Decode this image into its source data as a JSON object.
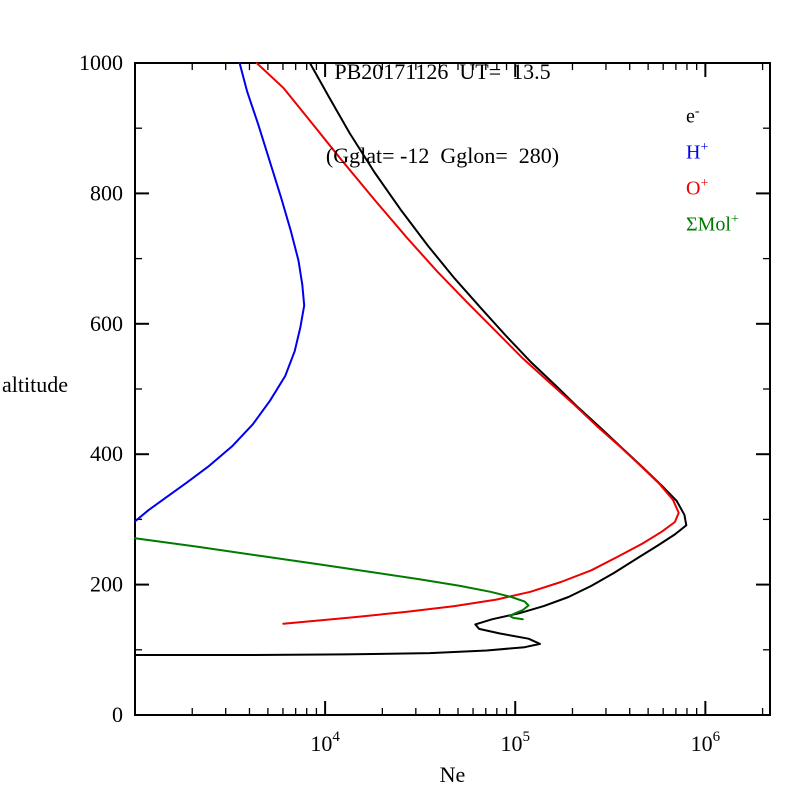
{
  "figure": {
    "title_line1": "PB20171126  UT=  13.5",
    "title_line2": "(Gglat= -12  Gglon=  280)",
    "xlabel": "Ne",
    "ylabel": "altitude"
  },
  "legend": {
    "items": [
      {
        "base": "e",
        "sup": "-",
        "color": "#000000"
      },
      {
        "base": "H",
        "sup": "+",
        "color": "#0000ee"
      },
      {
        "base": "O",
        "sup": "+",
        "color": "#ee0000"
      },
      {
        "base": "ΣMol",
        "sup": "+",
        "color": "#007a00"
      }
    ]
  },
  "chart_data": {
    "type": "line",
    "title": "PB20171126  UT=  13.5  (Gglat= -12  Gglon= 280)",
    "xlabel": "Ne",
    "ylabel": "altitude",
    "x_scale": "log10",
    "xlim_log10": [
      3.0,
      6.34
    ],
    "ylim": [
      0,
      1000
    ],
    "grid": false,
    "legend_position": "top-right-inside",
    "x_ticks": [
      {
        "log10": 4,
        "base": "10",
        "exp": "4"
      },
      {
        "log10": 5,
        "base": "10",
        "exp": "5"
      },
      {
        "log10": 6,
        "base": "10",
        "exp": "6"
      }
    ],
    "y_ticks": [
      {
        "value": 0,
        "label": "0"
      },
      {
        "value": 200,
        "label": "200"
      },
      {
        "value": 400,
        "label": "400"
      },
      {
        "value": 600,
        "label": "600"
      },
      {
        "value": 800,
        "label": "800"
      },
      {
        "value": 1000,
        "label": "1000"
      }
    ],
    "y_minor_step": 100,
    "series": [
      {
        "name": "e-",
        "color": "#000000",
        "points_log10Ne_alt": [
          [
            3.0,
            92
          ],
          [
            3.6,
            92
          ],
          [
            4.1,
            93
          ],
          [
            4.55,
            95
          ],
          [
            4.85,
            99
          ],
          [
            5.05,
            104
          ],
          [
            5.13,
            109
          ],
          [
            5.07,
            117
          ],
          [
            4.92,
            125
          ],
          [
            4.81,
            132
          ],
          [
            4.79,
            139
          ],
          [
            4.88,
            147
          ],
          [
            5.02,
            156
          ],
          [
            5.15,
            167
          ],
          [
            5.28,
            181
          ],
          [
            5.4,
            198
          ],
          [
            5.52,
            218
          ],
          [
            5.64,
            240
          ],
          [
            5.75,
            260
          ],
          [
            5.84,
            277
          ],
          [
            5.9,
            291
          ],
          [
            5.89,
            307
          ],
          [
            5.85,
            328
          ],
          [
            5.77,
            352
          ],
          [
            5.67,
            380
          ],
          [
            5.56,
            410
          ],
          [
            5.45,
            440
          ],
          [
            5.33,
            472
          ],
          [
            5.21,
            506
          ],
          [
            5.08,
            542
          ],
          [
            4.95,
            582
          ],
          [
            4.82,
            624
          ],
          [
            4.68,
            670
          ],
          [
            4.54,
            720
          ],
          [
            4.4,
            774
          ],
          [
            4.26,
            832
          ],
          [
            4.13,
            892
          ],
          [
            4.02,
            948
          ],
          [
            3.92,
            1000
          ]
        ]
      },
      {
        "name": "H+",
        "color": "#0000ee",
        "points_log10Ne_alt": [
          [
            3.0,
            297
          ],
          [
            3.07,
            314
          ],
          [
            3.16,
            333
          ],
          [
            3.27,
            356
          ],
          [
            3.39,
            382
          ],
          [
            3.51,
            412
          ],
          [
            3.62,
            446
          ],
          [
            3.71,
            482
          ],
          [
            3.79,
            520
          ],
          [
            3.84,
            558
          ],
          [
            3.87,
            595
          ],
          [
            3.89,
            628
          ],
          [
            3.88,
            660
          ],
          [
            3.86,
            697
          ],
          [
            3.82,
            742
          ],
          [
            3.77,
            792
          ],
          [
            3.71,
            848
          ],
          [
            3.65,
            904
          ],
          [
            3.59,
            956
          ],
          [
            3.55,
            1000
          ]
        ]
      },
      {
        "name": "O+",
        "color": "#ee0000",
        "points_log10Ne_alt": [
          [
            3.78,
            140
          ],
          [
            3.93,
            144
          ],
          [
            4.15,
            150
          ],
          [
            4.42,
            158
          ],
          [
            4.68,
            167
          ],
          [
            4.9,
            177
          ],
          [
            5.08,
            189
          ],
          [
            5.24,
            204
          ],
          [
            5.4,
            222
          ],
          [
            5.54,
            243
          ],
          [
            5.67,
            263
          ],
          [
            5.77,
            281
          ],
          [
            5.84,
            296
          ],
          [
            5.86,
            310
          ],
          [
            5.83,
            330
          ],
          [
            5.76,
            354
          ],
          [
            5.66,
            382
          ],
          [
            5.55,
            412
          ],
          [
            5.43,
            443
          ],
          [
            5.31,
            476
          ],
          [
            5.18,
            510
          ],
          [
            5.04,
            547
          ],
          [
            4.9,
            588
          ],
          [
            4.75,
            632
          ],
          [
            4.59,
            680
          ],
          [
            4.43,
            732
          ],
          [
            4.26,
            790
          ],
          [
            4.09,
            850
          ],
          [
            3.93,
            908
          ],
          [
            3.78,
            962
          ],
          [
            3.64,
            1000
          ]
        ]
      },
      {
        "name": "ΣMol+",
        "color": "#007a00",
        "points_log10Ne_alt": [
          [
            3.0,
            271
          ],
          [
            3.33,
            258
          ],
          [
            3.66,
            244
          ],
          [
            3.97,
            231
          ],
          [
            4.25,
            219
          ],
          [
            4.5,
            208
          ],
          [
            4.71,
            198
          ],
          [
            4.87,
            189
          ],
          [
            4.98,
            181
          ],
          [
            5.05,
            174
          ],
          [
            5.07,
            168
          ],
          [
            5.04,
            161
          ],
          [
            5.0,
            156
          ],
          [
            4.97,
            152
          ],
          [
            4.99,
            149
          ],
          [
            5.04,
            147
          ]
        ]
      }
    ]
  }
}
